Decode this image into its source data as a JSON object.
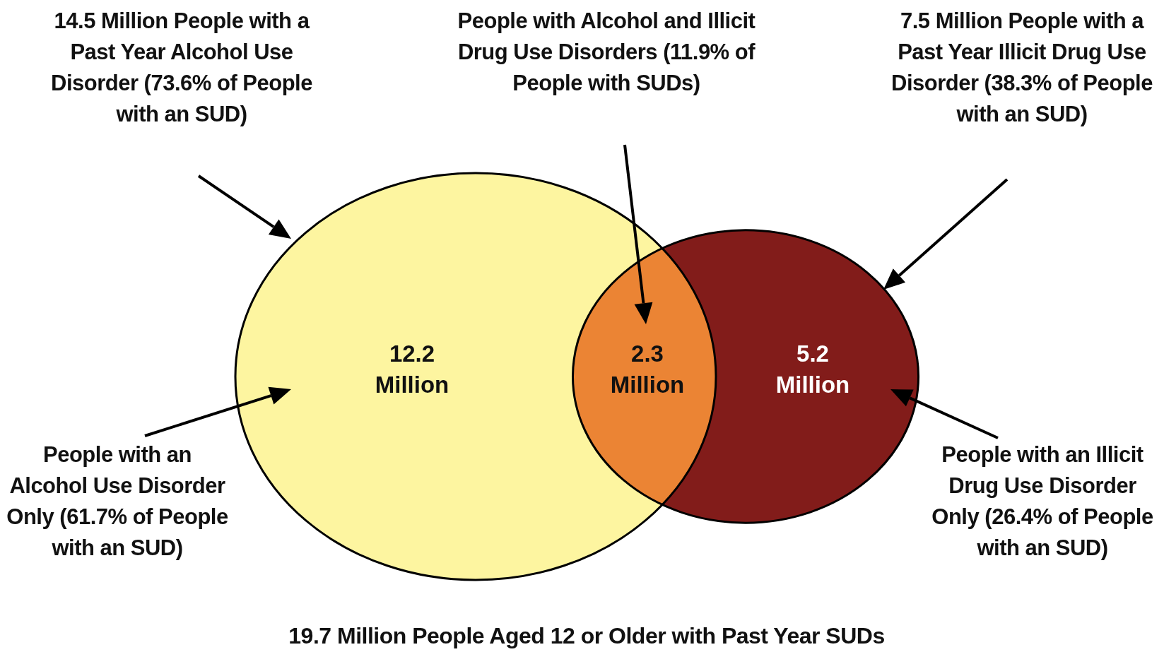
{
  "chart_data": {
    "type": "other",
    "title": "19.7 Million People Aged 12 or Older with Past Year SUDs",
    "categories": [
      null,
      null,
      null
    ],
    "values": [
      12.2,
      2.3,
      5.2
    ],
    "colors": [
      "#fdf5a0",
      "#eb8434",
      "#821c1a"
    ],
    "value_labels": [
      "12.2 Million",
      "2.3 Million",
      "5.2 Million"
    ],
    "annotations": [
      "14.5 Million People with a Past Year Alcohol Use Disorder (73.6% of People with an SUD)",
      "People with Alcohol and Illicit Drug Use Disorders (11.9% of People with SUDs)",
      "7.5 Million People with a Past Year Illicit Drug Use Disorder (38.3% of People with an SUD)",
      "People with an Alcohol Use Disorder Only (61.7% of People with an SUD)",
      "People with an Illicit Drug Use Disorder Only (26.4% of People with an SUD)"
    ]
  }
}
